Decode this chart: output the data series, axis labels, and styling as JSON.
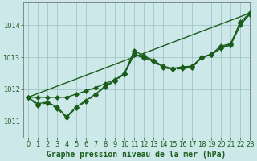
{
  "title": "Graphe pression niveau de la mer (hPa)",
  "bg_color": "#cce8e8",
  "grid_color": "#9bbfbf",
  "line_color": "#1a5c1a",
  "marker_color": "#1a5c1a",
  "xlim": [
    -0.5,
    23
  ],
  "ylim": [
    1010.5,
    1014.7
  ],
  "yticks": [
    1011,
    1012,
    1013,
    1014
  ],
  "xticks": [
    0,
    1,
    2,
    3,
    4,
    5,
    6,
    7,
    8,
    9,
    10,
    11,
    12,
    13,
    14,
    15,
    16,
    17,
    18,
    19,
    20,
    21,
    22,
    23
  ],
  "series": [
    {
      "x": [
        0,
        1,
        2,
        3,
        4,
        5,
        6,
        7,
        8,
        9,
        10,
        11,
        12,
        13,
        14,
        15,
        16,
        17,
        18,
        19,
        20,
        21,
        22,
        23
      ],
      "y": [
        1011.75,
        1011.55,
        1011.6,
        1011.45,
        1011.15,
        1011.45,
        1011.65,
        1011.85,
        1012.1,
        1012.28,
        1012.5,
        1013.2,
        1013.05,
        1012.9,
        1012.72,
        1012.65,
        1012.68,
        1012.7,
        1013.0,
        1013.1,
        1013.35,
        1013.42,
        1014.1,
        1014.38
      ],
      "linestyle": "-",
      "marker": "D",
      "markersize": 3,
      "linewidth": 1.0
    },
    {
      "x": [
        0,
        1,
        2,
        3,
        4,
        5,
        6,
        7,
        8,
        9,
        10,
        11,
        12,
        13,
        14,
        15,
        16,
        17,
        18,
        19,
        20,
        21,
        22,
        23
      ],
      "y": [
        1011.75,
        1011.5,
        1011.58,
        1011.4,
        1011.12,
        1011.42,
        1011.62,
        1011.83,
        1012.08,
        1012.25,
        1012.48,
        1013.12,
        1013.0,
        1012.87,
        1012.68,
        1012.62,
        1012.65,
        1012.68,
        1012.98,
        1013.08,
        1013.3,
        1013.4,
        1014.05,
        1014.33
      ],
      "linestyle": "--",
      "marker": "D",
      "markersize": 3,
      "linewidth": 1.0
    },
    {
      "x": [
        0,
        1,
        2,
        3,
        4,
        5,
        6,
        7,
        8,
        9,
        10,
        11,
        12,
        13,
        14,
        15,
        16,
        17,
        18,
        19,
        20,
        21,
        22,
        23
      ],
      "y": [
        1011.75,
        1011.75,
        1011.75,
        1011.75,
        1011.75,
        1011.85,
        1011.95,
        1012.05,
        1012.18,
        1012.3,
        1012.48,
        1013.08,
        1012.98,
        1012.88,
        1012.7,
        1012.65,
        1012.7,
        1012.72,
        1013.0,
        1013.08,
        1013.28,
        1013.38,
        1014.0,
        1014.35
      ],
      "linestyle": "-",
      "marker": "D",
      "markersize": 3,
      "linewidth": 1.0
    },
    {
      "x": [
        0,
        23
      ],
      "y": [
        1011.75,
        1014.38
      ],
      "linestyle": "-",
      "marker": "None",
      "markersize": 0,
      "linewidth": 1.0
    }
  ],
  "xlabel_fontsize": 7,
  "tick_labelsize": 6,
  "tick_color": "#1a5c1a",
  "spine_color": "#666666"
}
